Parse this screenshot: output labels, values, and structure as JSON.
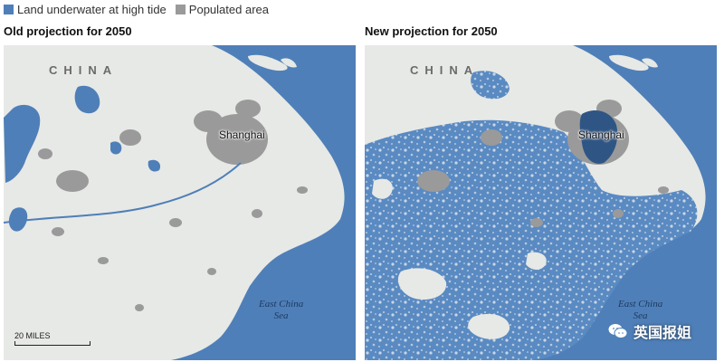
{
  "legend": {
    "items": [
      {
        "label": "Land underwater at high tide",
        "color": "#4f7fb8"
      },
      {
        "label": "Populated area",
        "color": "#9a9a9a"
      }
    ]
  },
  "panels": [
    {
      "title": "Old projection for 2050",
      "country_label": "CHINA",
      "city_label": "Shanghai",
      "sea_label_line1": "East China",
      "sea_label_line2": "Sea"
    },
    {
      "title": "New projection for 2050",
      "country_label": "CHINA",
      "city_label": "Shanghai",
      "sea_label_line1": "East China",
      "sea_label_line2": "Sea"
    }
  ],
  "scale_bar": {
    "label": "20 MILES"
  },
  "watermark": {
    "text": "英国报姐"
  },
  "colors": {
    "sea": "#4f7fb8",
    "land": "#e7e9e6",
    "populated": "#9a9a9a",
    "flood": "#5a8ac2",
    "flood_dark": "#2f5585"
  }
}
